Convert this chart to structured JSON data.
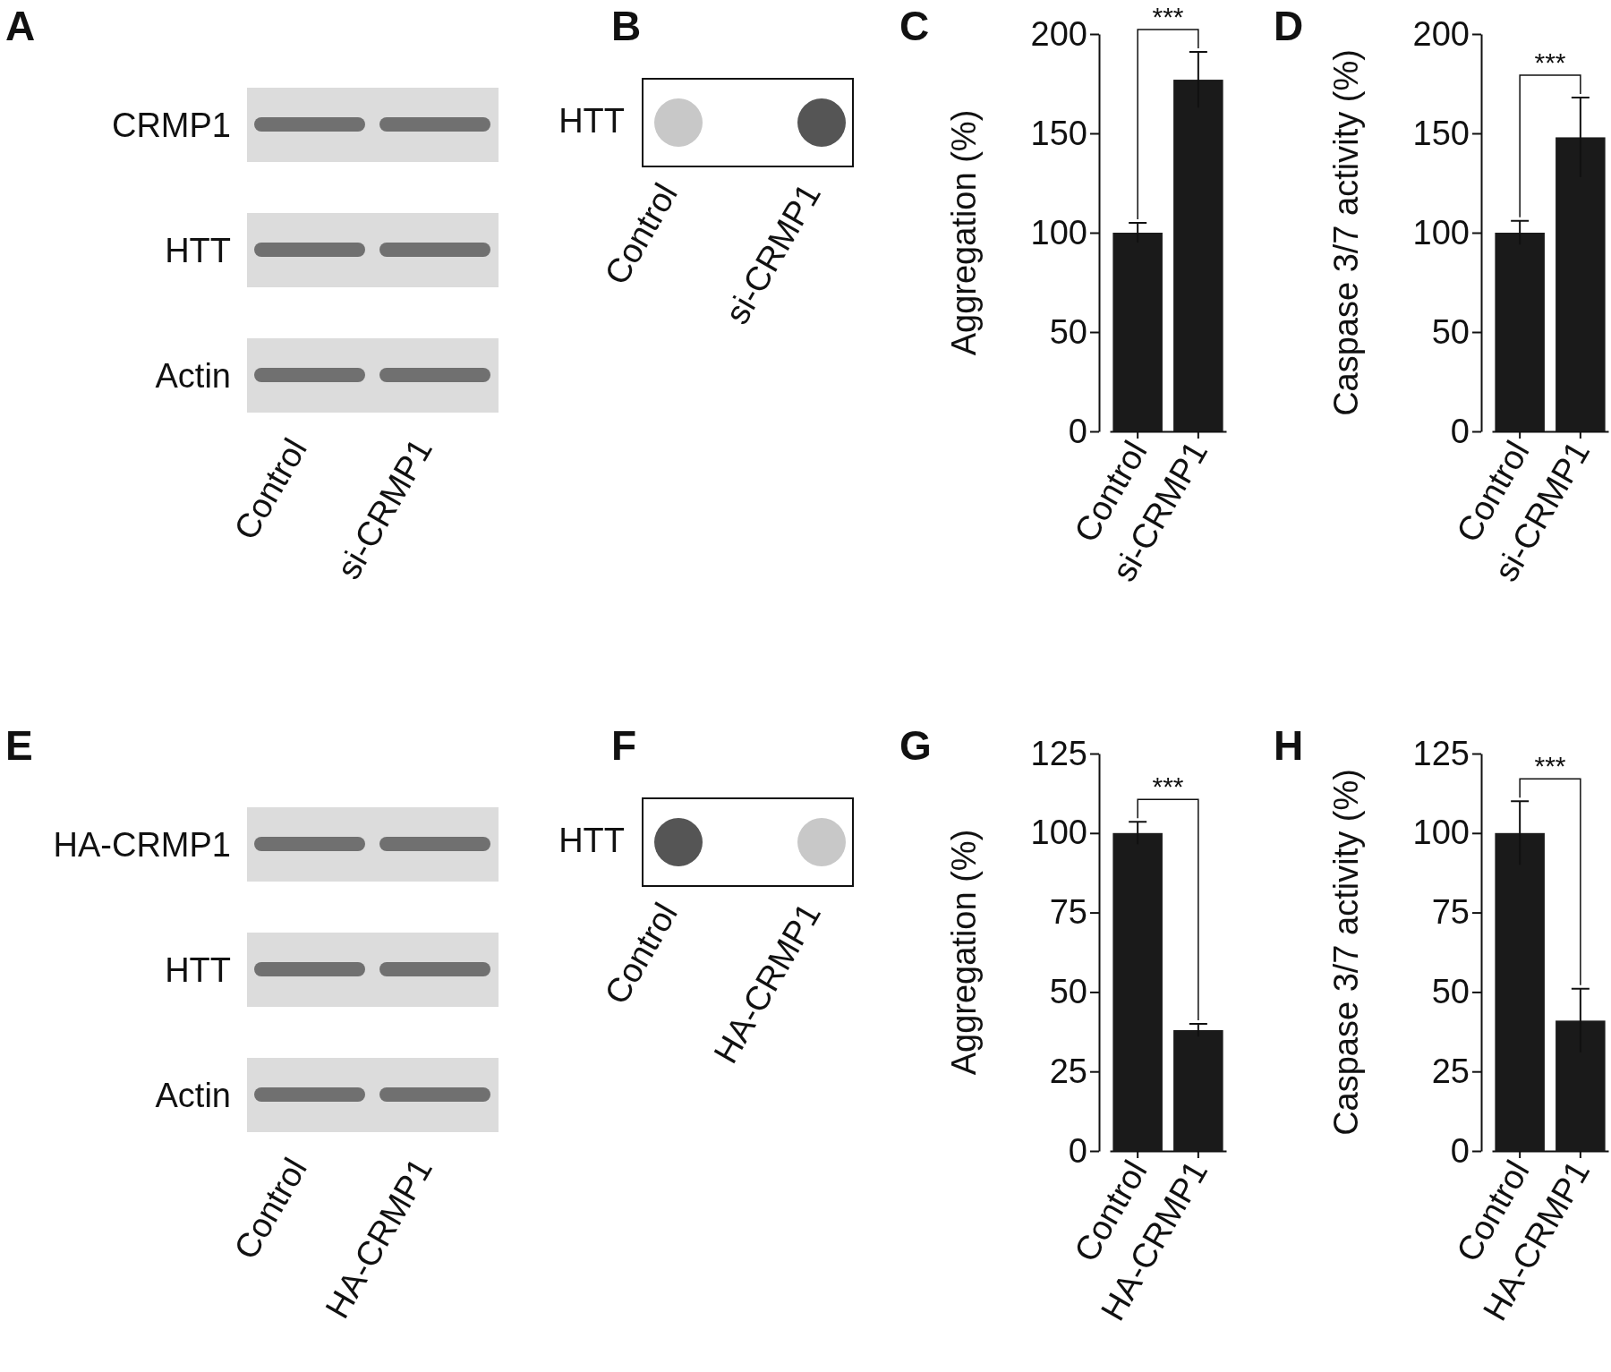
{
  "chart_data": [
    {
      "type": "other",
      "title": "A",
      "categories": [
        "Control",
        "si-CRMP1"
      ],
      "annotations": [
        "CRMP1",
        "HTT",
        "Actin"
      ]
    },
    {
      "type": "other",
      "title": "B",
      "categories": [
        "Control",
        "si-CRMP1"
      ],
      "annotations": [
        "HTT"
      ]
    },
    {
      "type": "bar",
      "title": "C",
      "categories": [
        "Control",
        "si-CRMP1"
      ],
      "values": [
        100,
        177
      ],
      "errors": [
        5,
        14
      ],
      "color": "#1a1a1a",
      "ylabel": "Aggregation (%)",
      "ylim": [
        0,
        200
      ],
      "yticks": [
        0,
        50,
        100,
        150,
        200
      ],
      "annotations": [
        "***"
      ]
    },
    {
      "type": "bar",
      "title": "D",
      "categories": [
        "Control",
        "si-CRMP1"
      ],
      "values": [
        100,
        148
      ],
      "errors": [
        6,
        20
      ],
      "color": "#1a1a1a",
      "ylabel": "Caspase 3/7 activity (%)",
      "ylim": [
        0,
        200
      ],
      "yticks": [
        0,
        50,
        100,
        150,
        200
      ],
      "annotations": [
        "***"
      ]
    },
    {
      "type": "other",
      "title": "E",
      "categories": [
        "Control",
        "HA-CRMP1"
      ],
      "annotations": [
        "HA-CRMP1",
        "HTT",
        "Actin"
      ]
    },
    {
      "type": "other",
      "title": "F",
      "categories": [
        "Control",
        "HA-CRMP1"
      ],
      "annotations": [
        "HTT"
      ]
    },
    {
      "type": "bar",
      "title": "G",
      "categories": [
        "Control",
        "HA-CRMP1"
      ],
      "values": [
        100,
        38
      ],
      "errors": [
        3.5,
        2
      ],
      "color": "#1a1a1a",
      "ylabel": "Aggregation (%)",
      "ylim": [
        0,
        125
      ],
      "yticks": [
        0,
        25,
        50,
        75,
        100,
        125
      ],
      "annotations": [
        "***"
      ]
    },
    {
      "type": "bar",
      "title": "H",
      "categories": [
        "Control",
        "HA-CRMP1"
      ],
      "values": [
        100,
        41
      ],
      "errors": [
        10,
        10
      ],
      "color": "#1a1a1a",
      "ylabel": "Caspase 3/7 activity (%)",
      "ylim": [
        0,
        125
      ],
      "yticks": [
        0,
        25,
        50,
        75,
        100,
        125
      ],
      "annotations": [
        "***"
      ]
    }
  ]
}
